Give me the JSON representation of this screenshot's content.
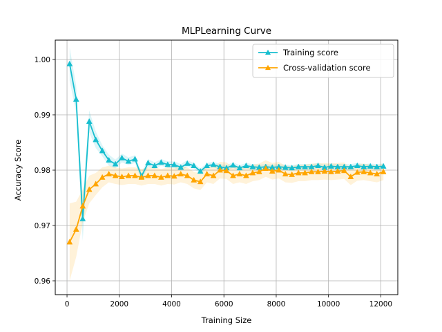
{
  "chart_data": {
    "type": "line",
    "title": "MLPLearning Curve",
    "xlabel": "Training Size",
    "ylabel": "Accuracy Score",
    "xlim": [
      -450,
      12650
    ],
    "ylim": [
      0.9575,
      1.0035
    ],
    "xticks": [
      0,
      2000,
      4000,
      6000,
      8000,
      10000,
      12000
    ],
    "yticks": [
      0.96,
      0.97,
      0.98,
      0.99,
      1.0
    ],
    "ytick_labels": [
      "0.96",
      "0.97",
      "0.98",
      "0.99",
      "1.00"
    ],
    "grid": true,
    "legend_position": "top-right",
    "x": [
      100,
      350,
      600,
      850,
      1100,
      1350,
      1600,
      1850,
      2100,
      2350,
      2600,
      2850,
      3100,
      3350,
      3600,
      3850,
      4100,
      4350,
      4600,
      4850,
      5100,
      5350,
      5600,
      5850,
      6100,
      6350,
      6600,
      6850,
      7100,
      7350,
      7600,
      7850,
      8100,
      8350,
      8600,
      8850,
      9100,
      9350,
      9600,
      9850,
      10100,
      10350,
      10600,
      10850,
      11100,
      11350,
      11600,
      11850,
      12100
    ],
    "series": [
      {
        "name": "Training score",
        "color": "#17becf",
        "values": [
          0.9992,
          0.9928,
          0.9712,
          0.9888,
          0.9855,
          0.9835,
          0.9818,
          0.9811,
          0.9822,
          0.9816,
          0.982,
          0.9789,
          0.9813,
          0.9808,
          0.9814,
          0.981,
          0.981,
          0.9805,
          0.9812,
          0.9808,
          0.9798,
          0.9808,
          0.981,
          0.9806,
          0.9804,
          0.9809,
          0.9804,
          0.9808,
          0.9806,
          0.9805,
          0.9806,
          0.9805,
          0.9806,
          0.9805,
          0.9804,
          0.9806,
          0.9806,
          0.9806,
          0.9808,
          0.9805,
          0.9807,
          0.9806,
          0.9806,
          0.9806,
          0.9808,
          0.9806,
          0.9807,
          0.9806,
          0.9807
        ],
        "std": [
          0.003,
          0.0025,
          0.004,
          0.002,
          0.0015,
          0.001,
          0.001,
          0.0008,
          0.0008,
          0.0007,
          0.0007,
          0.0007,
          0.0007,
          0.0006,
          0.0006,
          0.0006,
          0.0006,
          0.0006,
          0.0006,
          0.0005,
          0.0005,
          0.0005,
          0.0005,
          0.0005,
          0.0005,
          0.0005,
          0.0005,
          0.0005,
          0.0005,
          0.0005,
          0.0005,
          0.0005,
          0.0005,
          0.0005,
          0.0005,
          0.0005,
          0.0005,
          0.0005,
          0.0005,
          0.0005,
          0.0005,
          0.0005,
          0.0005,
          0.0005,
          0.0005,
          0.0005,
          0.0005,
          0.0005,
          0.0005
        ]
      },
      {
        "name": "Cross-validation score",
        "color": "#ffa500",
        "values": [
          0.967,
          0.9693,
          0.9735,
          0.9765,
          0.9775,
          0.9787,
          0.9793,
          0.979,
          0.9788,
          0.979,
          0.979,
          0.9787,
          0.979,
          0.979,
          0.9787,
          0.979,
          0.9789,
          0.9793,
          0.979,
          0.9782,
          0.9779,
          0.9793,
          0.979,
          0.98,
          0.9799,
          0.979,
          0.9793,
          0.979,
          0.9795,
          0.9797,
          0.9803,
          0.9798,
          0.98,
          0.9793,
          0.9792,
          0.9795,
          0.9795,
          0.9797,
          0.9797,
          0.9798,
          0.9797,
          0.9798,
          0.9799,
          0.9788,
          0.9796,
          0.9797,
          0.9795,
          0.9793,
          0.9797
        ],
        "std": [
          0.007,
          0.005,
          0.003,
          0.0025,
          0.002,
          0.0018,
          0.0015,
          0.0015,
          0.0015,
          0.0015,
          0.0015,
          0.0015,
          0.0015,
          0.0015,
          0.0015,
          0.0015,
          0.0015,
          0.0015,
          0.0015,
          0.0015,
          0.0015,
          0.0015,
          0.0015,
          0.0015,
          0.0015,
          0.0015,
          0.0015,
          0.0015,
          0.0015,
          0.0015,
          0.0015,
          0.0015,
          0.0015,
          0.0015,
          0.0015,
          0.0015,
          0.0015,
          0.0015,
          0.0015,
          0.0015,
          0.0015,
          0.0015,
          0.0015,
          0.0015,
          0.0015,
          0.0015,
          0.0015,
          0.0015,
          0.0015
        ]
      }
    ]
  }
}
